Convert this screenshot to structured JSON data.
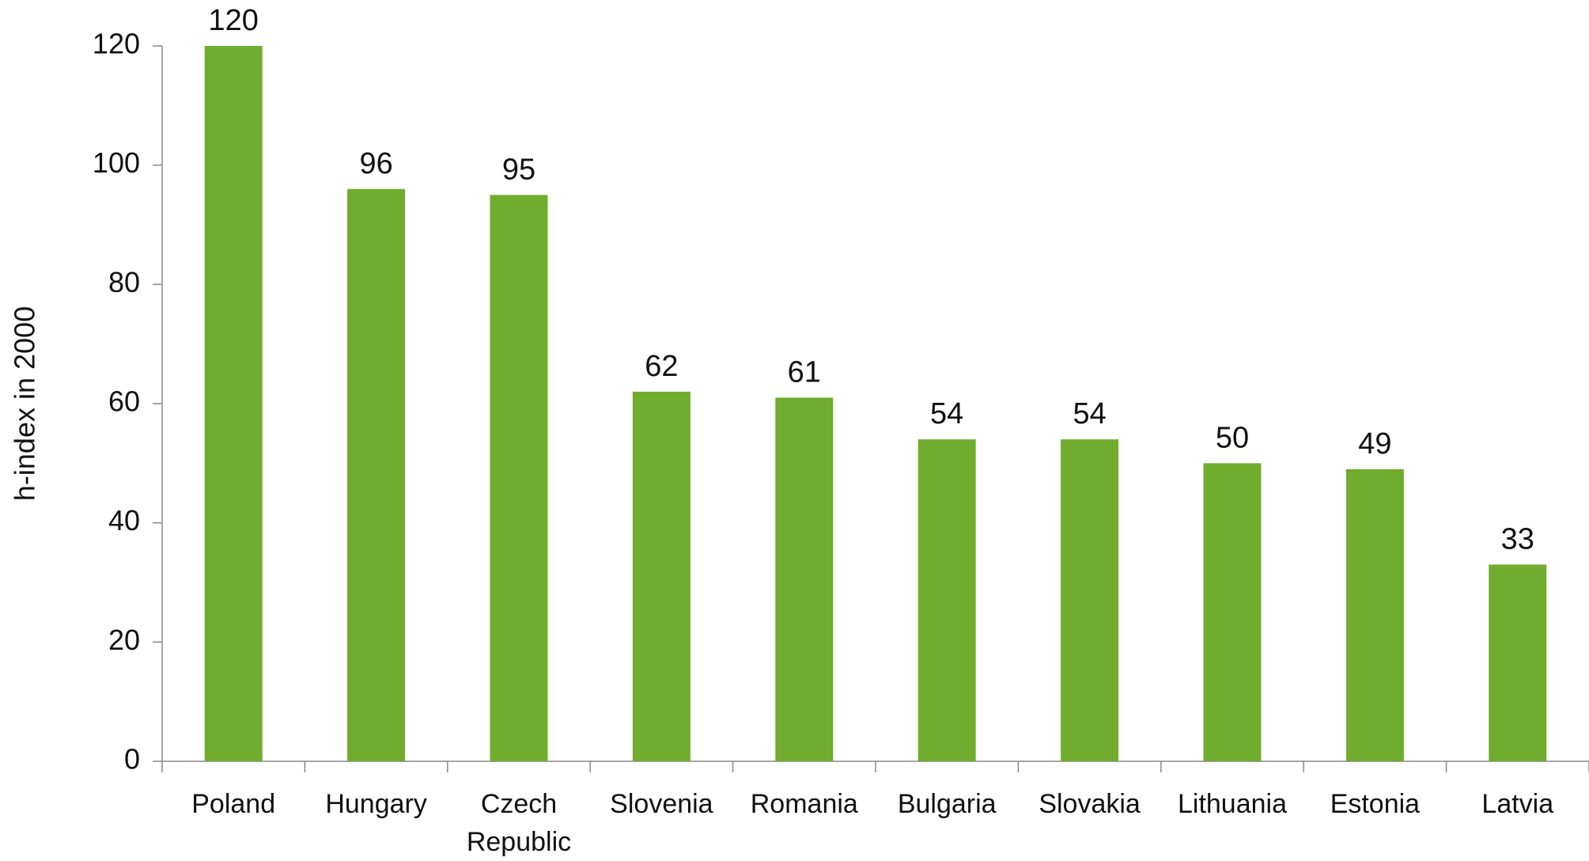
{
  "chart_data": {
    "type": "bar",
    "y_label": "h-index  in 2000",
    "categories": [
      "Poland",
      "Hungary",
      "Czech Republic",
      "Slovenia",
      "Romania",
      "Bulgaria",
      "Slovakia",
      "Lithuania",
      "Estonia",
      "Latvia"
    ],
    "values": [
      120,
      96,
      95,
      62,
      61,
      54,
      54,
      50,
      49,
      33
    ],
    "color": "#70ac2e",
    "ylim": [
      0,
      120
    ],
    "yticks": [
      0,
      20,
      40,
      60,
      80,
      100,
      120
    ],
    "grid": false
  }
}
